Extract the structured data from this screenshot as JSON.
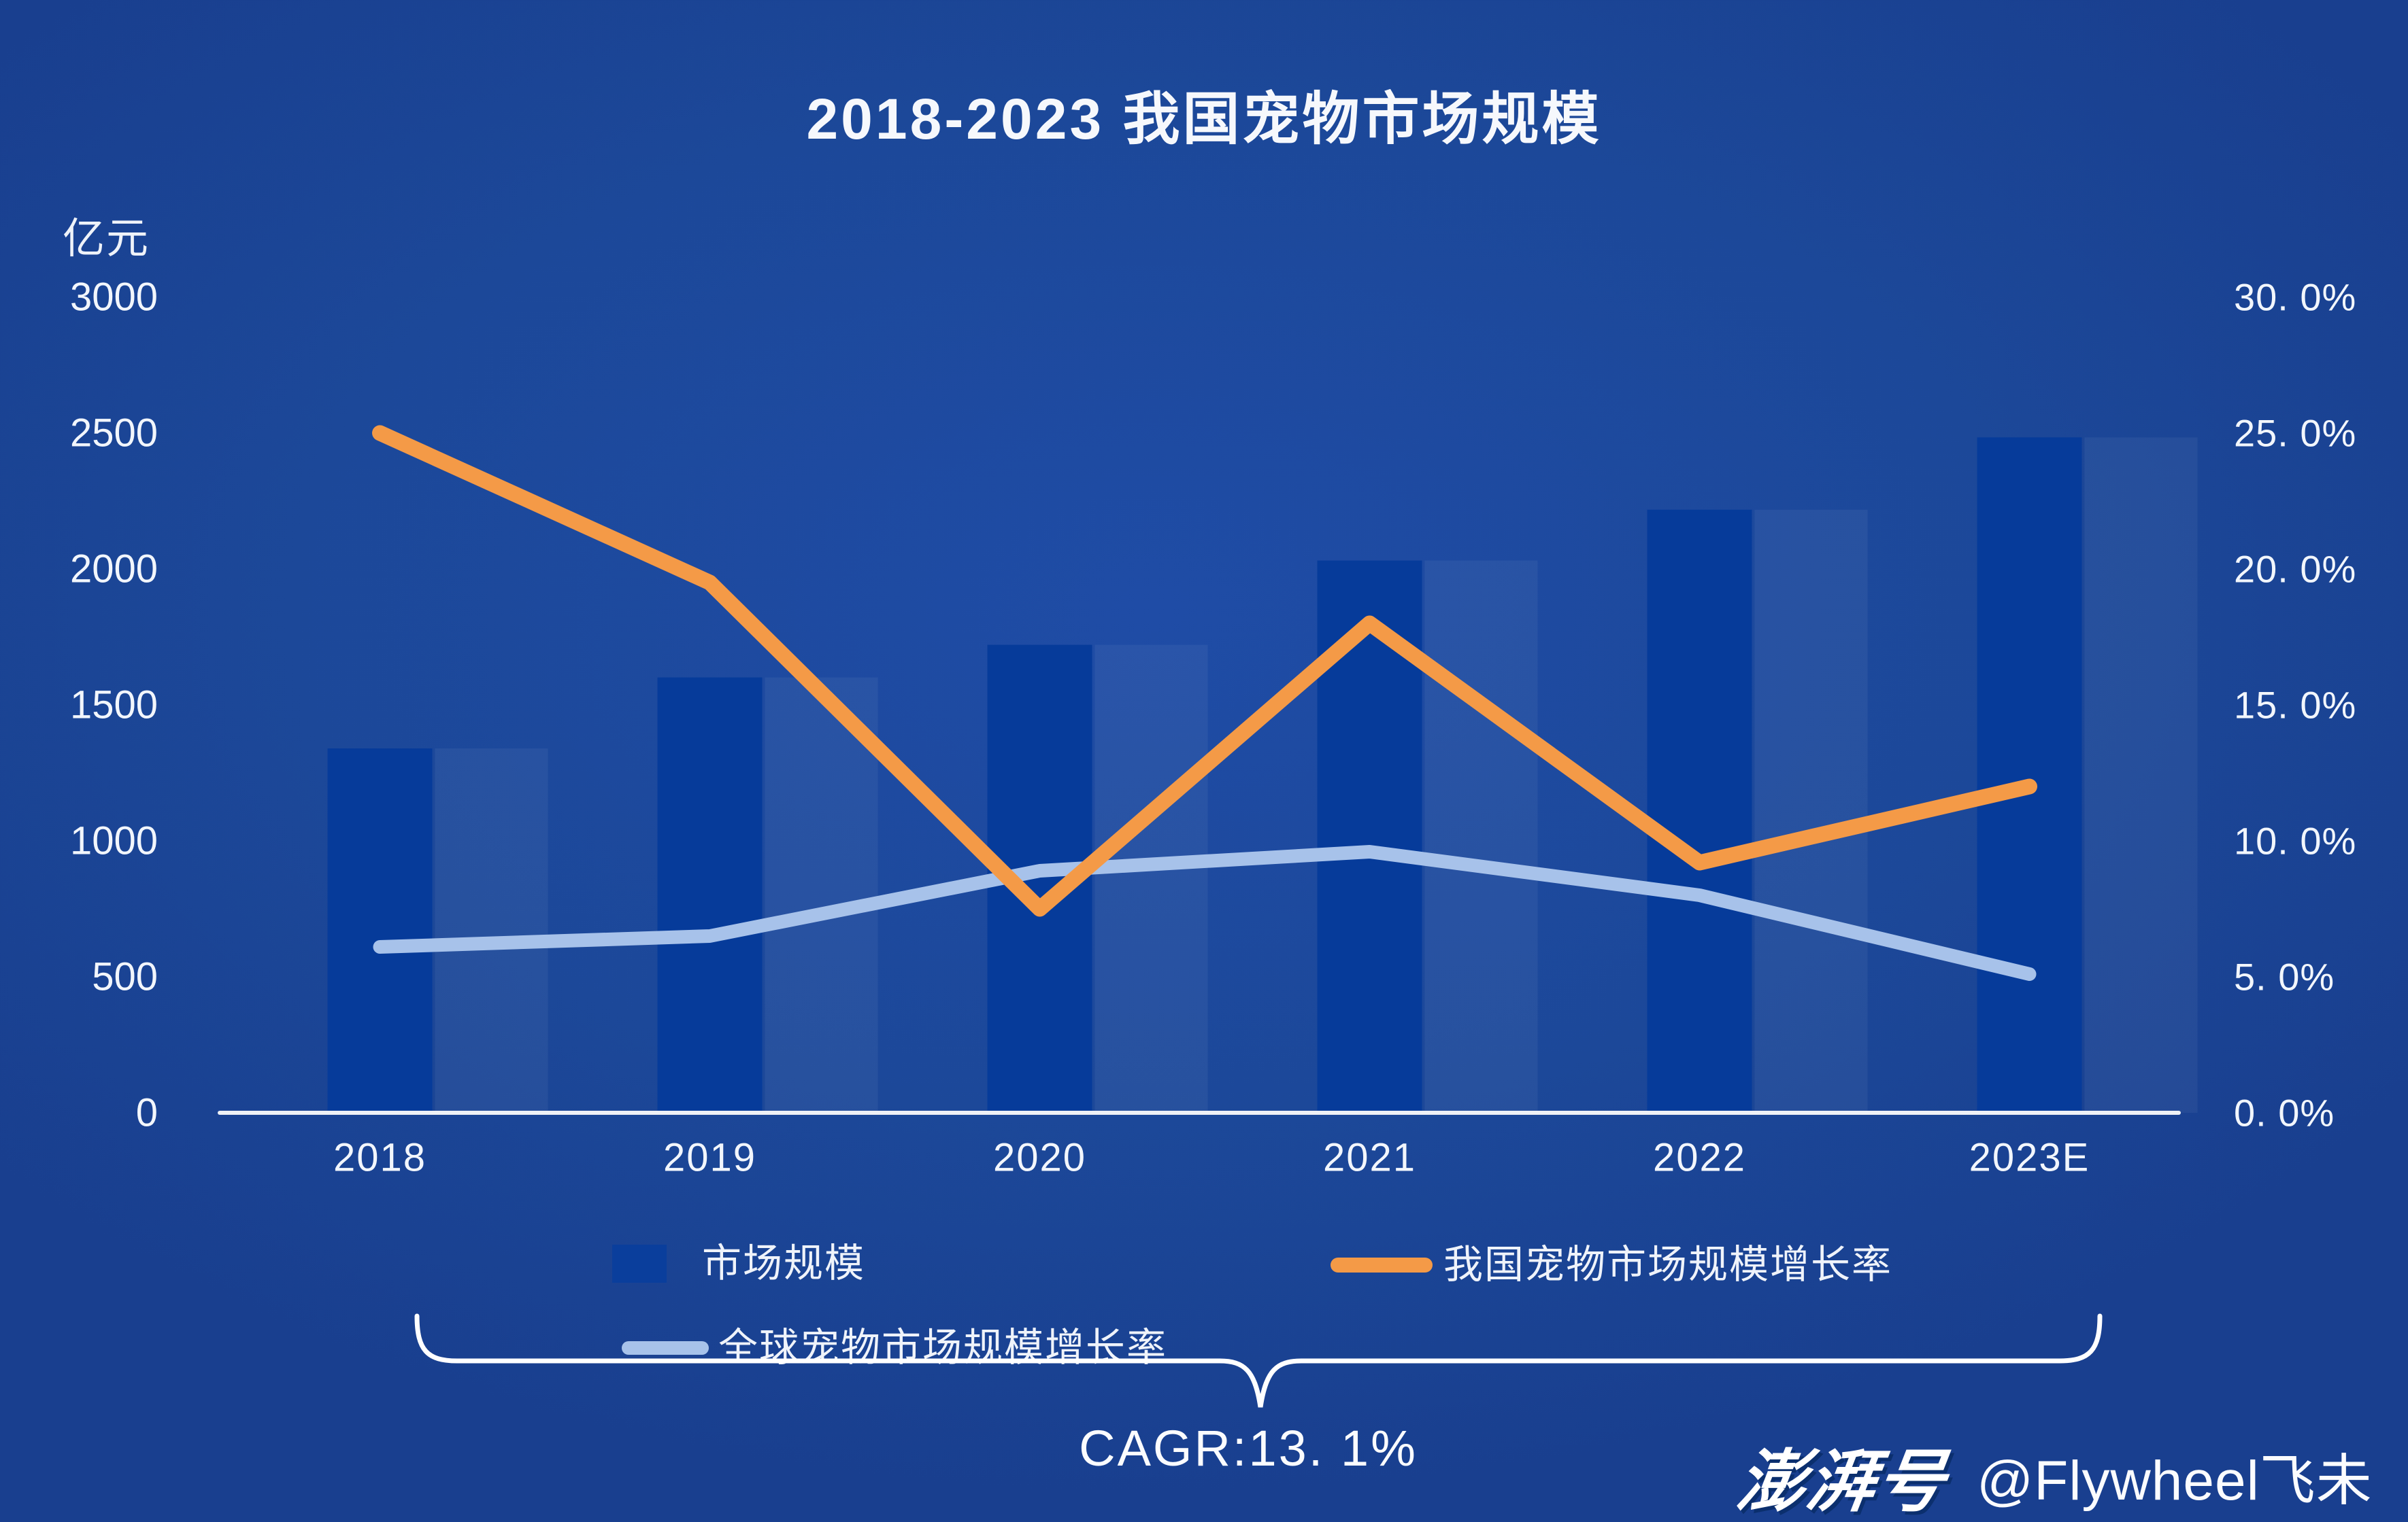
{
  "title": "2018-2023 我国宠物市场规模",
  "axes": {
    "left": {
      "unit": "亿元",
      "max": 3000,
      "ticks": [
        "3000",
        "2500",
        "2000",
        "1500",
        "1000",
        "500",
        "0"
      ]
    },
    "right": {
      "max": 30,
      "ticks": [
        "30. 0%",
        "25. 0%",
        "20. 0%",
        "15. 0%",
        "10. 0%",
        "5. 0%",
        "0. 0%"
      ]
    }
  },
  "chart_data": {
    "type": "bar",
    "title": "2018-2023 我国宠物市场规模",
    "categories": [
      "2018",
      "2019",
      "2020",
      "2021",
      "2022",
      "2023E"
    ],
    "series": [
      {
        "name": "市场规模",
        "type": "bar",
        "axis": "left",
        "unit": "亿元",
        "values": [
          1340,
          1601,
          1721,
          2031,
          2218,
          2484
        ],
        "color": "#063b9a"
      },
      {
        "name": "我国宠物市场规模增长率",
        "type": "line",
        "axis": "right",
        "unit": "%",
        "values": [
          25.0,
          19.5,
          7.5,
          18.0,
          9.2,
          12.0
        ],
        "color": "#f49a47"
      },
      {
        "name": "全球宠物市场规模增长率",
        "type": "line",
        "axis": "right",
        "unit": "%",
        "values": [
          6.1,
          6.5,
          8.9,
          9.6,
          8.0,
          5.1
        ],
        "color": "#a7c2ea"
      }
    ],
    "ylabel": "亿元",
    "ylim_left": [
      0,
      3000
    ],
    "ylim_right": [
      0,
      30
    ],
    "grid": false,
    "legend_position": "bottom"
  },
  "legend": {
    "bar_label": "市场规模",
    "china_line_label": "我国宠物市场规模增长率",
    "global_line_label": "全球宠物市场规模增长率"
  },
  "annotation": {
    "cagr_label": "CAGR:13. 1%"
  },
  "watermark": {
    "logo": "澎湃号",
    "handle": "@Flywheel飞未"
  },
  "colors": {
    "background": "#1c4899",
    "bar": "#063b9a",
    "bar_ghost_band": "rgba(255,255,255,0.05)",
    "china_line": "#f49a47",
    "global_line": "#a7c2ea",
    "axis_line": "#eef1f6",
    "text": "#f2f6fc",
    "legend_swatch": "#0a3e9c",
    "brace": "#ffffff"
  }
}
